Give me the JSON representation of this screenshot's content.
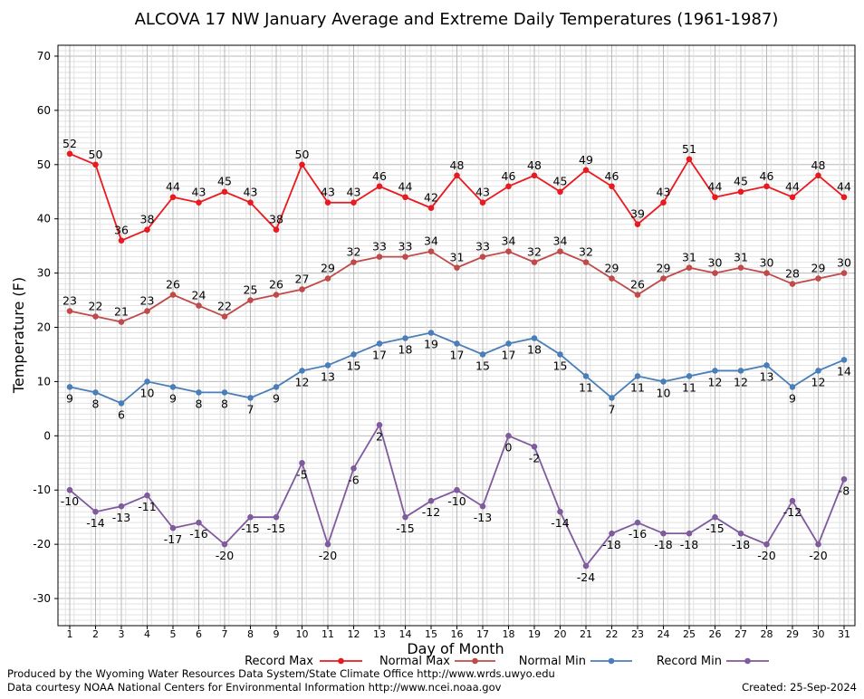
{
  "chart_data": {
    "type": "line",
    "title": "ALCOVA 17 NW January Average and Extreme Daily Temperatures (1961-1987)",
    "xlabel": "Day of Month",
    "ylabel": "Temperature (F)",
    "ylim": [
      -35,
      72
    ],
    "yticks": [
      -30,
      -20,
      -10,
      0,
      10,
      20,
      30,
      40,
      50,
      60,
      70
    ],
    "grid": true,
    "legend_position": "bottom",
    "x": [
      1,
      2,
      3,
      4,
      5,
      6,
      7,
      8,
      9,
      10,
      11,
      12,
      13,
      14,
      15,
      16,
      17,
      18,
      19,
      20,
      21,
      22,
      23,
      24,
      25,
      26,
      27,
      28,
      29,
      30,
      31
    ],
    "series": [
      {
        "name": "Record Max",
        "color": "#e8191f",
        "label_position": "above",
        "values": [
          52,
          50,
          36,
          38,
          44,
          43,
          45,
          43,
          38,
          50,
          43,
          43,
          46,
          44,
          42,
          48,
          43,
          46,
          48,
          45,
          49,
          46,
          39,
          43,
          51,
          44,
          45,
          46,
          44,
          48,
          44
        ]
      },
      {
        "name": "Normal Max",
        "color": "#c04a4a",
        "label_position": "above",
        "values": [
          23,
          22,
          21,
          23,
          26,
          24,
          22,
          25,
          26,
          27,
          29,
          32,
          33,
          33,
          34,
          31,
          33,
          34,
          32,
          34,
          32,
          29,
          26,
          29,
          31,
          30,
          31,
          30,
          28,
          29,
          30
        ]
      },
      {
        "name": "Normal Min",
        "color": "#4a7eb8",
        "label_position": "below",
        "values": [
          9,
          8,
          6,
          10,
          9,
          8,
          8,
          7,
          9,
          12,
          13,
          15,
          17,
          18,
          19,
          17,
          15,
          17,
          18,
          15,
          11,
          7,
          11,
          10,
          11,
          12,
          12,
          13,
          9,
          12,
          14
        ]
      },
      {
        "name": "Record Min",
        "color": "#7f5a9c",
        "label_position": "below",
        "values": [
          -10,
          -14,
          -13,
          -11,
          -17,
          -16,
          -20,
          -15,
          -15,
          -5,
          -20,
          -6,
          2,
          -15,
          -12,
          -10,
          -13,
          0,
          -2,
          -14,
          -24,
          -18,
          -16,
          -18,
          -18,
          -15,
          -18,
          -20,
          -12,
          -20,
          -8
        ]
      }
    ]
  },
  "footer": {
    "line1": "Produced by the Wyoming Water Resources Data System/State Climate Office http://www.wrds.uwyo.edu",
    "line2": "Data courtesy NOAA National Centers for Environmental Information http://www.ncei.noaa.gov",
    "created": "Created:  25-Sep-2024"
  }
}
